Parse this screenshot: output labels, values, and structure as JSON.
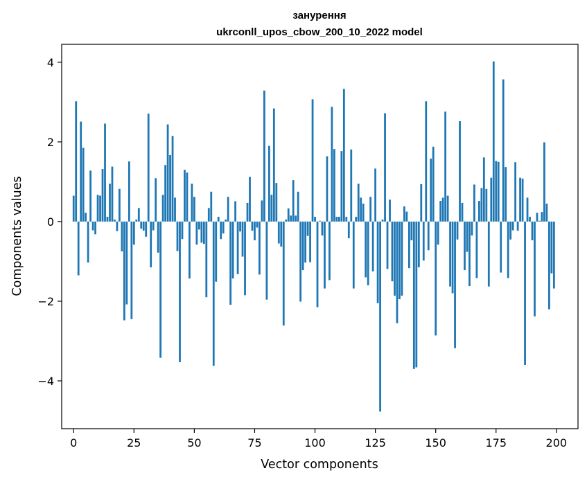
{
  "chart_data": {
    "type": "bar",
    "title": "занурення",
    "subtitle": "ukrconll_upos_cbow_200_10_2022 model",
    "xlabel": "Vector components",
    "ylabel": "Components values",
    "xlim": [
      -4.95,
      208.95
    ],
    "ylim": [
      -5.2,
      4.45
    ],
    "xticks": [
      0,
      25,
      50,
      75,
      100,
      125,
      150,
      175,
      200
    ],
    "yticks": [
      -4,
      -2,
      0,
      2,
      4
    ],
    "ytick_labels": [
      "−4",
      "−2",
      "0",
      "2",
      "4"
    ],
    "grid": false,
    "bar_color": "#1f77b4",
    "values": [
      0.65,
      3.02,
      -1.35,
      2.51,
      1.85,
      0.22,
      -1.03,
      1.28,
      -0.22,
      -0.32,
      0.67,
      0.65,
      1.32,
      2.46,
      0.12,
      0.95,
      1.38,
      0.05,
      -0.24,
      0.82,
      -0.75,
      -2.48,
      -2.08,
      1.51,
      -2.45,
      -0.58,
      0.05,
      0.34,
      -0.18,
      -0.23,
      -0.38,
      2.71,
      -1.15,
      -0.22,
      1.09,
      -0.78,
      -3.42,
      0.67,
      1.42,
      2.44,
      1.67,
      2.15,
      0.6,
      -0.74,
      -3.53,
      -0.44,
      1.3,
      1.23,
      -1.43,
      0.95,
      0.62,
      -0.58,
      -0.2,
      -0.53,
      -0.56,
      -1.9,
      0.34,
      0.75,
      -3.62,
      -1.51,
      0.12,
      -0.44,
      -0.3,
      0.05,
      0.62,
      -2.09,
      -1.43,
      0.51,
      -1.32,
      -0.25,
      -0.88,
      -1.85,
      0.47,
      1.12,
      -0.23,
      -0.47,
      -0.15,
      -1.33,
      0.53,
      3.29,
      -1.96,
      1.9,
      0.67,
      2.84,
      0.97,
      -0.55,
      -0.63,
      -2.61,
      0.05,
      0.33,
      0.15,
      1.04,
      0.15,
      0.75,
      -2.01,
      -1.22,
      -1.03,
      -0.36,
      -1.02,
      3.07,
      0.12,
      -2.15,
      0.02,
      -0.35,
      -1.68,
      1.64,
      -1.47,
      2.88,
      1.82,
      0.12,
      0.12,
      1.77,
      3.33,
      0.12,
      -0.42,
      1.81,
      -1.68,
      0.12,
      0.95,
      0.6,
      0.45,
      -1.4,
      -1.6,
      0.62,
      -1.25,
      1.33,
      -2.05,
      -4.77,
      0.05,
      2.72,
      -1.19,
      0.55,
      -1.5,
      -1.86,
      -2.55,
      -1.95,
      -1.86,
      0.38,
      0.25,
      -1.17,
      -0.47,
      -3.7,
      -3.66,
      -1.15,
      0.94,
      -0.98,
      3.02,
      -0.72,
      1.58,
      1.88,
      -2.86,
      -0.58,
      0.52,
      0.6,
      2.76,
      0.65,
      -1.63,
      -1.8,
      -3.18,
      -0.45,
      2.52,
      0.47,
      -1.22,
      -0.76,
      -1.62,
      -0.35,
      0.93,
      -1.42,
      0.52,
      0.84,
      1.61,
      0.82,
      -1.63,
      1.1,
      4.02,
      1.52,
      1.5,
      -1.28,
      3.57,
      1.37,
      -1.42,
      -0.45,
      -0.22,
      1.49,
      -0.23,
      1.1,
      1.08,
      -3.6,
      0.6,
      0.12,
      -0.47,
      -2.38,
      0.22,
      0.02,
      0.24,
      1.99,
      0.45,
      -2.2,
      -1.3,
      -1.68
    ]
  }
}
